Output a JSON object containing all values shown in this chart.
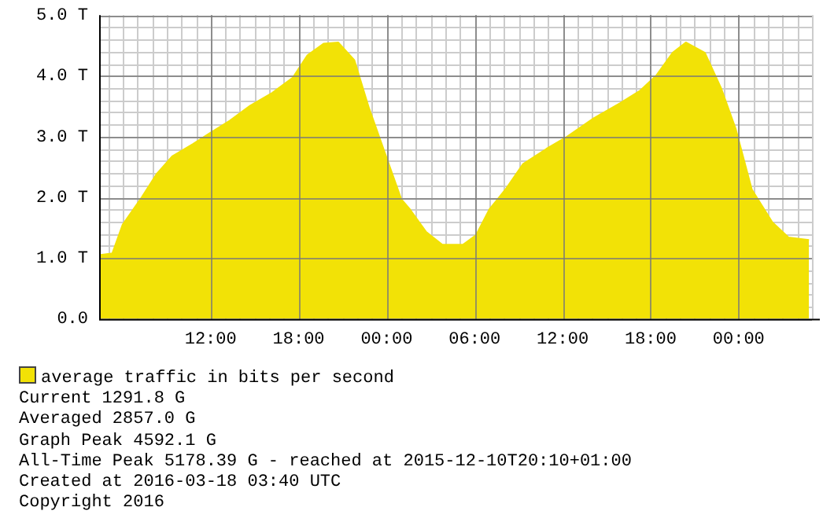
{
  "chart_data": {
    "type": "area",
    "x": [
      "2016-03-16T04:24",
      "2016-03-16T05:18",
      "2016-03-16T06:00",
      "2016-03-16T07:18",
      "2016-03-16T08:18",
      "2016-03-16T09:24",
      "2016-03-16T10:48",
      "2016-03-16T11:54",
      "2016-03-16T13:18",
      "2016-03-16T14:42",
      "2016-03-16T16:12",
      "2016-03-16T17:36",
      "2016-03-16T18:36",
      "2016-03-16T19:42",
      "2016-03-16T20:42",
      "2016-03-16T21:48",
      "2016-03-16T22:48",
      "2016-03-16T23:54",
      "2016-03-17T01:00",
      "2016-03-17T01:36",
      "2016-03-17T02:42",
      "2016-03-17T03:48",
      "2016-03-17T05:12",
      "2016-03-17T06:06",
      "2016-03-17T07:00",
      "2016-03-17T08:06",
      "2016-03-17T09:18",
      "2016-03-17T10:54",
      "2016-03-17T12:18",
      "2016-03-17T14:06",
      "2016-03-17T15:54",
      "2016-03-17T17:18",
      "2016-03-17T18:24",
      "2016-03-17T19:30",
      "2016-03-17T20:24",
      "2016-03-17T21:42",
      "2016-03-17T22:48",
      "2016-03-17T23:48",
      "2016-03-18T00:54",
      "2016-03-18T02:18",
      "2016-03-18T03:24",
      "2016-03-18T04:48"
    ],
    "series": [
      {
        "name": "average traffic in bits per second",
        "color": "#f2e206",
        "values": [
          1.05,
          1.08,
          1.55,
          2.0,
          2.38,
          2.68,
          2.88,
          3.05,
          3.26,
          3.51,
          3.72,
          3.97,
          4.34,
          4.53,
          4.55,
          4.26,
          3.47,
          2.72,
          1.97,
          1.8,
          1.43,
          1.22,
          1.22,
          1.38,
          1.8,
          2.13,
          2.55,
          2.8,
          3.0,
          3.3,
          3.55,
          3.76,
          4.01,
          4.38,
          4.55,
          4.38,
          3.8,
          3.13,
          2.13,
          1.59,
          1.34,
          1.3
        ]
      }
    ],
    "xlim": [
      "2016-03-16T04:24",
      "2016-03-18T05:00"
    ],
    "xticks": [
      {
        "value": "2016-03-16T12:00",
        "label": "12:00"
      },
      {
        "value": "2016-03-16T18:00",
        "label": "18:00"
      },
      {
        "value": "2016-03-17T00:00",
        "label": "00:00"
      },
      {
        "value": "2016-03-17T06:00",
        "label": "06:00"
      },
      {
        "value": "2016-03-17T12:00",
        "label": "12:00"
      },
      {
        "value": "2016-03-17T18:00",
        "label": "18:00"
      },
      {
        "value": "2016-03-18T00:00",
        "label": "00:00"
      }
    ],
    "ylim": [
      0,
      5
    ],
    "yticks": [
      {
        "value": 0,
        "label": "0.0"
      },
      {
        "value": 1,
        "label": "1.0 T"
      },
      {
        "value": 2,
        "label": "2.0 T"
      },
      {
        "value": 3,
        "label": "3.0 T"
      },
      {
        "value": 4,
        "label": "4.0 T"
      },
      {
        "value": 5,
        "label": "5.0 T"
      }
    ],
    "grid": true,
    "legend": "bottom",
    "annotations": [
      "Current 1291.8 G",
      "Averaged 2857.0 G",
      "Graph Peak 4592.1 G",
      "All-Time Peak 5178.39 G - reached at 2015-12-10T20:10+01:00",
      "Created at 2016-03-18 03:40 UTC",
      "Copyright 2016"
    ]
  }
}
